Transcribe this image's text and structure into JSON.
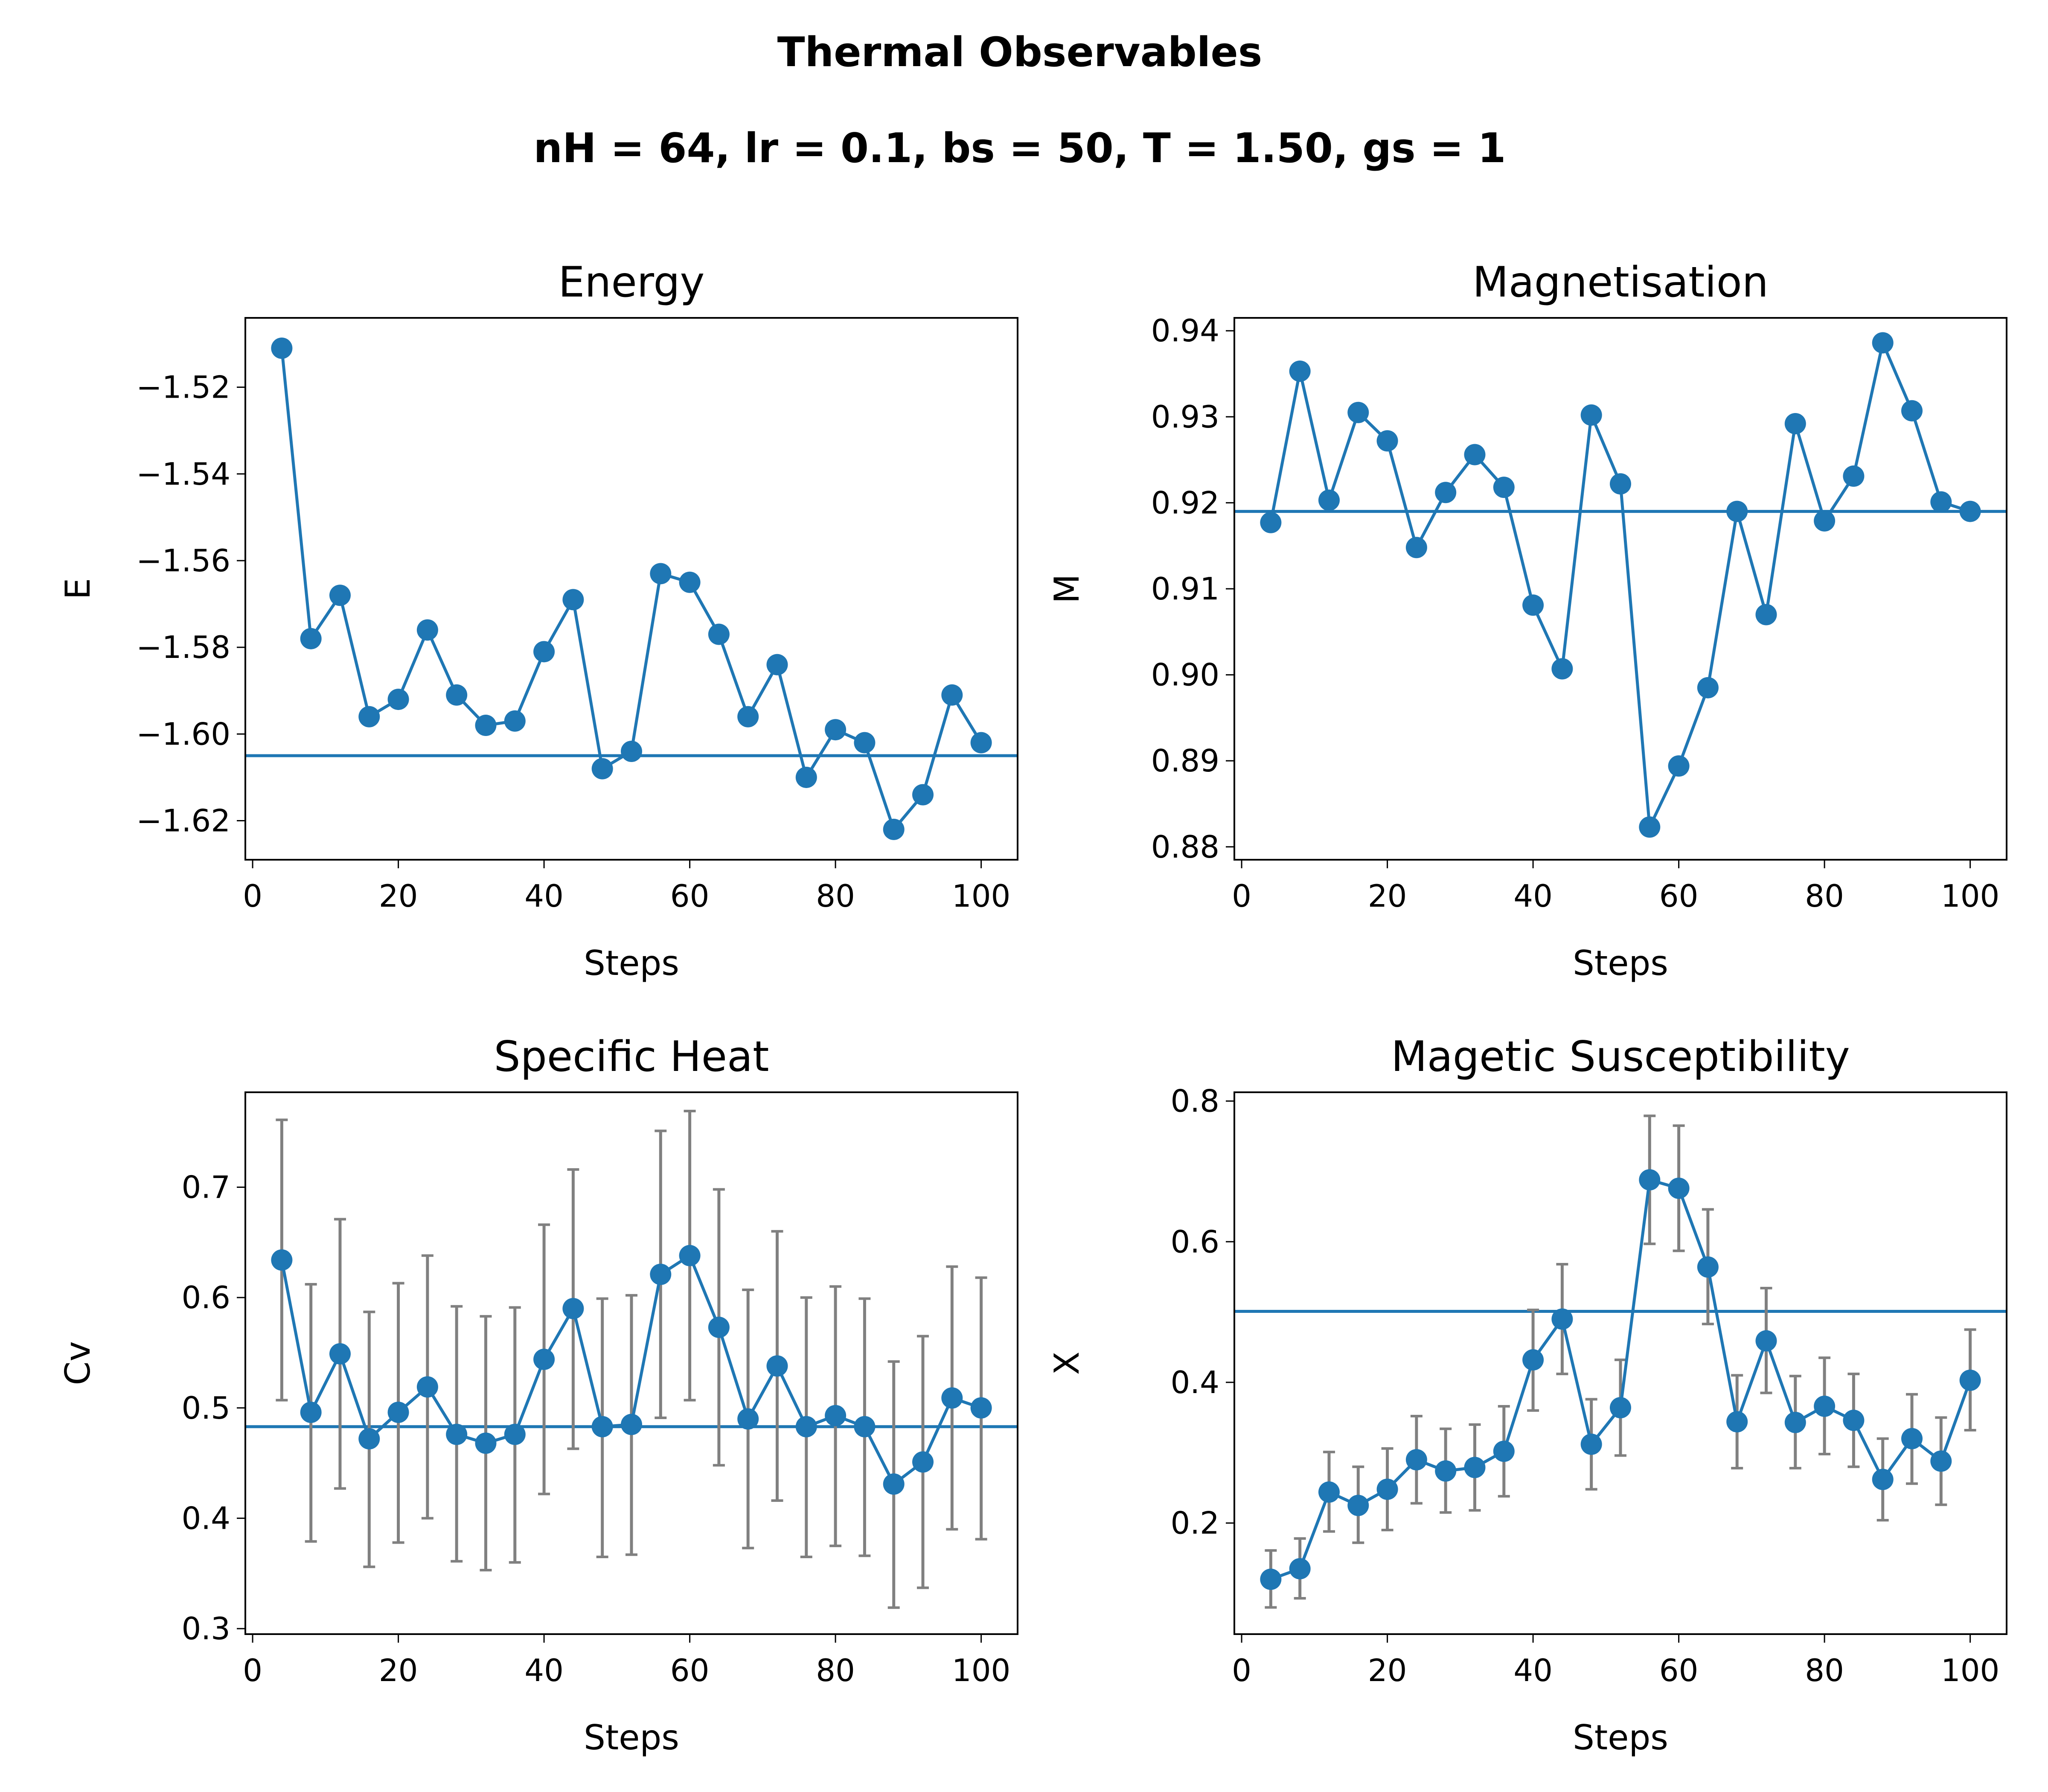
{
  "figure": {
    "suptitle": "Thermal Observables",
    "subtitle": "nH = 64, lr = 0.1, bs = 50,  T = 1.50, gs = 1"
  },
  "colors": {
    "series": "#1f77b4",
    "errorbar": "#808080",
    "axes": "#000000",
    "background": "#ffffff"
  },
  "chart_data": [
    {
      "type": "line",
      "title": "Energy",
      "xlabel": "Steps",
      "ylabel": "E",
      "xlim": [
        -1,
        105
      ],
      "ylim": [
        -1.629,
        -1.504
      ],
      "xticks": [
        0,
        20,
        40,
        60,
        80,
        100
      ],
      "xtick_labels": [
        "0",
        "20",
        "40",
        "60",
        "80",
        "100"
      ],
      "yticks": [
        -1.52,
        -1.54,
        -1.56,
        -1.58,
        -1.6,
        -1.62
      ],
      "ytick_labels": [
        "−1.52",
        "−1.54",
        "−1.56",
        "−1.58",
        "−1.60",
        "−1.62"
      ],
      "x": [
        4,
        8,
        12,
        16,
        20,
        24,
        28,
        32,
        36,
        40,
        44,
        48,
        52,
        56,
        60,
        64,
        68,
        72,
        76,
        80,
        84,
        88,
        92,
        96,
        100
      ],
      "y": [
        -1.511,
        -1.578,
        -1.568,
        -1.596,
        -1.592,
        -1.576,
        -1.591,
        -1.598,
        -1.597,
        -1.581,
        -1.569,
        -1.608,
        -1.604,
        -1.563,
        -1.565,
        -1.577,
        -1.596,
        -1.584,
        -1.61,
        -1.599,
        -1.602,
        -1.622,
        -1.614,
        -1.591,
        -1.602
      ],
      "hline": -1.605
    },
    {
      "type": "line",
      "title": "Magnetisation",
      "xlabel": "Steps",
      "ylabel": "M",
      "xlim": [
        -1,
        105
      ],
      "ylim": [
        0.8785,
        0.9415
      ],
      "xticks": [
        0,
        20,
        40,
        60,
        80,
        100
      ],
      "xtick_labels": [
        "0",
        "20",
        "40",
        "60",
        "80",
        "100"
      ],
      "yticks": [
        0.94,
        0.93,
        0.92,
        0.91,
        0.9,
        0.89,
        0.88
      ],
      "ytick_labels": [
        "0.94",
        "0.93",
        "0.92",
        "0.91",
        "0.90",
        "0.89",
        "0.88"
      ],
      "x": [
        4,
        8,
        12,
        16,
        20,
        24,
        28,
        32,
        36,
        40,
        44,
        48,
        52,
        56,
        60,
        64,
        68,
        72,
        76,
        80,
        84,
        88,
        92,
        96,
        100
      ],
      "y": [
        0.9177,
        0.9353,
        0.9203,
        0.9305,
        0.9272,
        0.9148,
        0.9212,
        0.9256,
        0.9218,
        0.9081,
        0.9007,
        0.9302,
        0.9222,
        0.8823,
        0.8894,
        0.8985,
        0.919,
        0.907,
        0.9292,
        0.9179,
        0.9231,
        0.9386,
        0.9307,
        0.9201,
        0.919
      ],
      "hline": 0.919
    },
    {
      "type": "line",
      "title": "Specific Heat",
      "xlabel": "Steps",
      "ylabel": "Cv",
      "xlim": [
        -1,
        105
      ],
      "ylim": [
        0.295,
        0.786
      ],
      "xticks": [
        0,
        20,
        40,
        60,
        80,
        100
      ],
      "xtick_labels": [
        "0",
        "20",
        "40",
        "60",
        "80",
        "100"
      ],
      "yticks": [
        0.7,
        0.6,
        0.5,
        0.4,
        0.3
      ],
      "ytick_labels": [
        "0.7",
        "0.6",
        "0.5",
        "0.4",
        "0.3"
      ],
      "x": [
        4,
        8,
        12,
        16,
        20,
        24,
        28,
        32,
        36,
        40,
        44,
        48,
        52,
        56,
        60,
        64,
        68,
        72,
        76,
        80,
        84,
        88,
        92,
        96,
        100
      ],
      "y": [
        0.634,
        0.496,
        0.549,
        0.472,
        0.496,
        0.519,
        0.476,
        0.468,
        0.476,
        0.544,
        0.59,
        0.483,
        0.485,
        0.621,
        0.638,
        0.573,
        0.49,
        0.538,
        0.483,
        0.493,
        0.483,
        0.431,
        0.451,
        0.509,
        0.5
      ],
      "err_low": [
        0.507,
        0.379,
        0.427,
        0.356,
        0.378,
        0.4,
        0.361,
        0.353,
        0.36,
        0.422,
        0.463,
        0.365,
        0.367,
        0.491,
        0.507,
        0.448,
        0.373,
        0.416,
        0.365,
        0.375,
        0.366,
        0.319,
        0.337,
        0.39,
        0.381
      ],
      "err_high": [
        0.761,
        0.612,
        0.671,
        0.587,
        0.613,
        0.638,
        0.592,
        0.583,
        0.591,
        0.666,
        0.716,
        0.599,
        0.602,
        0.751,
        0.769,
        0.698,
        0.607,
        0.66,
        0.6,
        0.61,
        0.599,
        0.542,
        0.565,
        0.628,
        0.618
      ],
      "hline": 0.483
    },
    {
      "type": "line",
      "title": "Magetic Susceptibility",
      "xlabel": "Steps",
      "ylabel": "X",
      "xlim": [
        -1,
        105
      ],
      "ylim": [
        0.042,
        0.8125
      ],
      "xticks": [
        0,
        20,
        40,
        60,
        80,
        100
      ],
      "xtick_labels": [
        "0",
        "20",
        "40",
        "60",
        "80",
        "100"
      ],
      "yticks": [
        0.8,
        0.6,
        0.4,
        0.2
      ],
      "ytick_labels": [
        "0.8",
        "0.6",
        "0.4",
        "0.2"
      ],
      "x": [
        4,
        8,
        12,
        16,
        20,
        24,
        28,
        32,
        36,
        40,
        44,
        48,
        52,
        56,
        60,
        64,
        68,
        72,
        76,
        80,
        84,
        88,
        92,
        96,
        100
      ],
      "y": [
        0.12,
        0.135,
        0.244,
        0.225,
        0.248,
        0.29,
        0.274,
        0.279,
        0.302,
        0.432,
        0.49,
        0.312,
        0.364,
        0.688,
        0.676,
        0.564,
        0.344,
        0.459,
        0.343,
        0.366,
        0.346,
        0.262,
        0.32,
        0.288,
        0.403
      ],
      "err_low": [
        0.08,
        0.093,
        0.188,
        0.172,
        0.19,
        0.228,
        0.215,
        0.218,
        0.238,
        0.36,
        0.412,
        0.248,
        0.296,
        0.597,
        0.587,
        0.483,
        0.278,
        0.385,
        0.278,
        0.298,
        0.28,
        0.204,
        0.256,
        0.226,
        0.332
      ],
      "err_high": [
        0.161,
        0.178,
        0.301,
        0.28,
        0.306,
        0.352,
        0.334,
        0.34,
        0.366,
        0.503,
        0.568,
        0.376,
        0.432,
        0.779,
        0.765,
        0.646,
        0.41,
        0.534,
        0.409,
        0.435,
        0.412,
        0.32,
        0.383,
        0.35,
        0.475
      ],
      "hline": 0.501
    }
  ]
}
